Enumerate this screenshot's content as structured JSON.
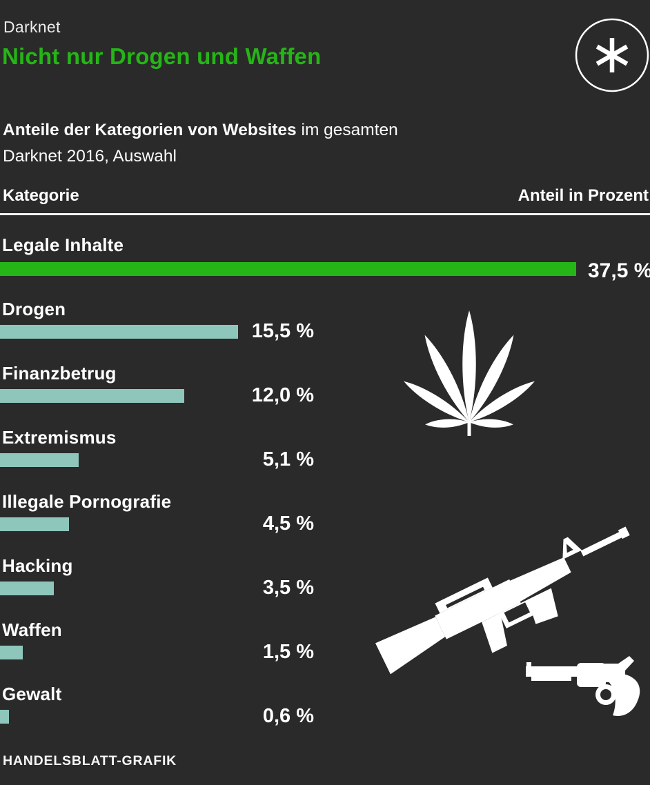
{
  "header": {
    "kicker": "Darknet",
    "title": "Nicht nur Drogen und Waffen"
  },
  "subtitle": {
    "bold": "Anteile der Kategorien von Websites",
    "rest": " im gesamten",
    "line2": "Darknet 2016, Auswahl"
  },
  "table_header": {
    "left": "Kategorie",
    "right": "Anteil in Prozent"
  },
  "chart_data": {
    "type": "bar",
    "orientation": "horizontal",
    "unit": "percent",
    "categories": [
      "Legale Inhalte",
      "Drogen",
      "Finanzbetrug",
      "Extremismus",
      "Illegale Pornografie",
      "Hacking",
      "Waffen",
      "Gewalt"
    ],
    "values": [
      37.5,
      15.5,
      12.0,
      5.1,
      4.5,
      3.5,
      1.5,
      0.6
    ],
    "value_labels": [
      "37,5 %",
      "15,5 %",
      "12,0 %",
      "5,1 %",
      "4,5 %",
      "3,5 %",
      "1,5 %",
      "0,6 %"
    ],
    "highlight_index": 0,
    "xlim": [
      0,
      42.3
    ],
    "grid": false,
    "legend": false,
    "colors": {
      "highlight_bar": "#26b517",
      "default_bar": "#8fc6bc",
      "background": "#2a2a2a",
      "text": "#ffffff"
    },
    "icons": [
      "cannabis-leaf",
      "assault-rifle",
      "revolver",
      "asterisk-logo"
    ]
  },
  "footer": {
    "credit": "HANDELSBLATT-GRAFIK"
  }
}
